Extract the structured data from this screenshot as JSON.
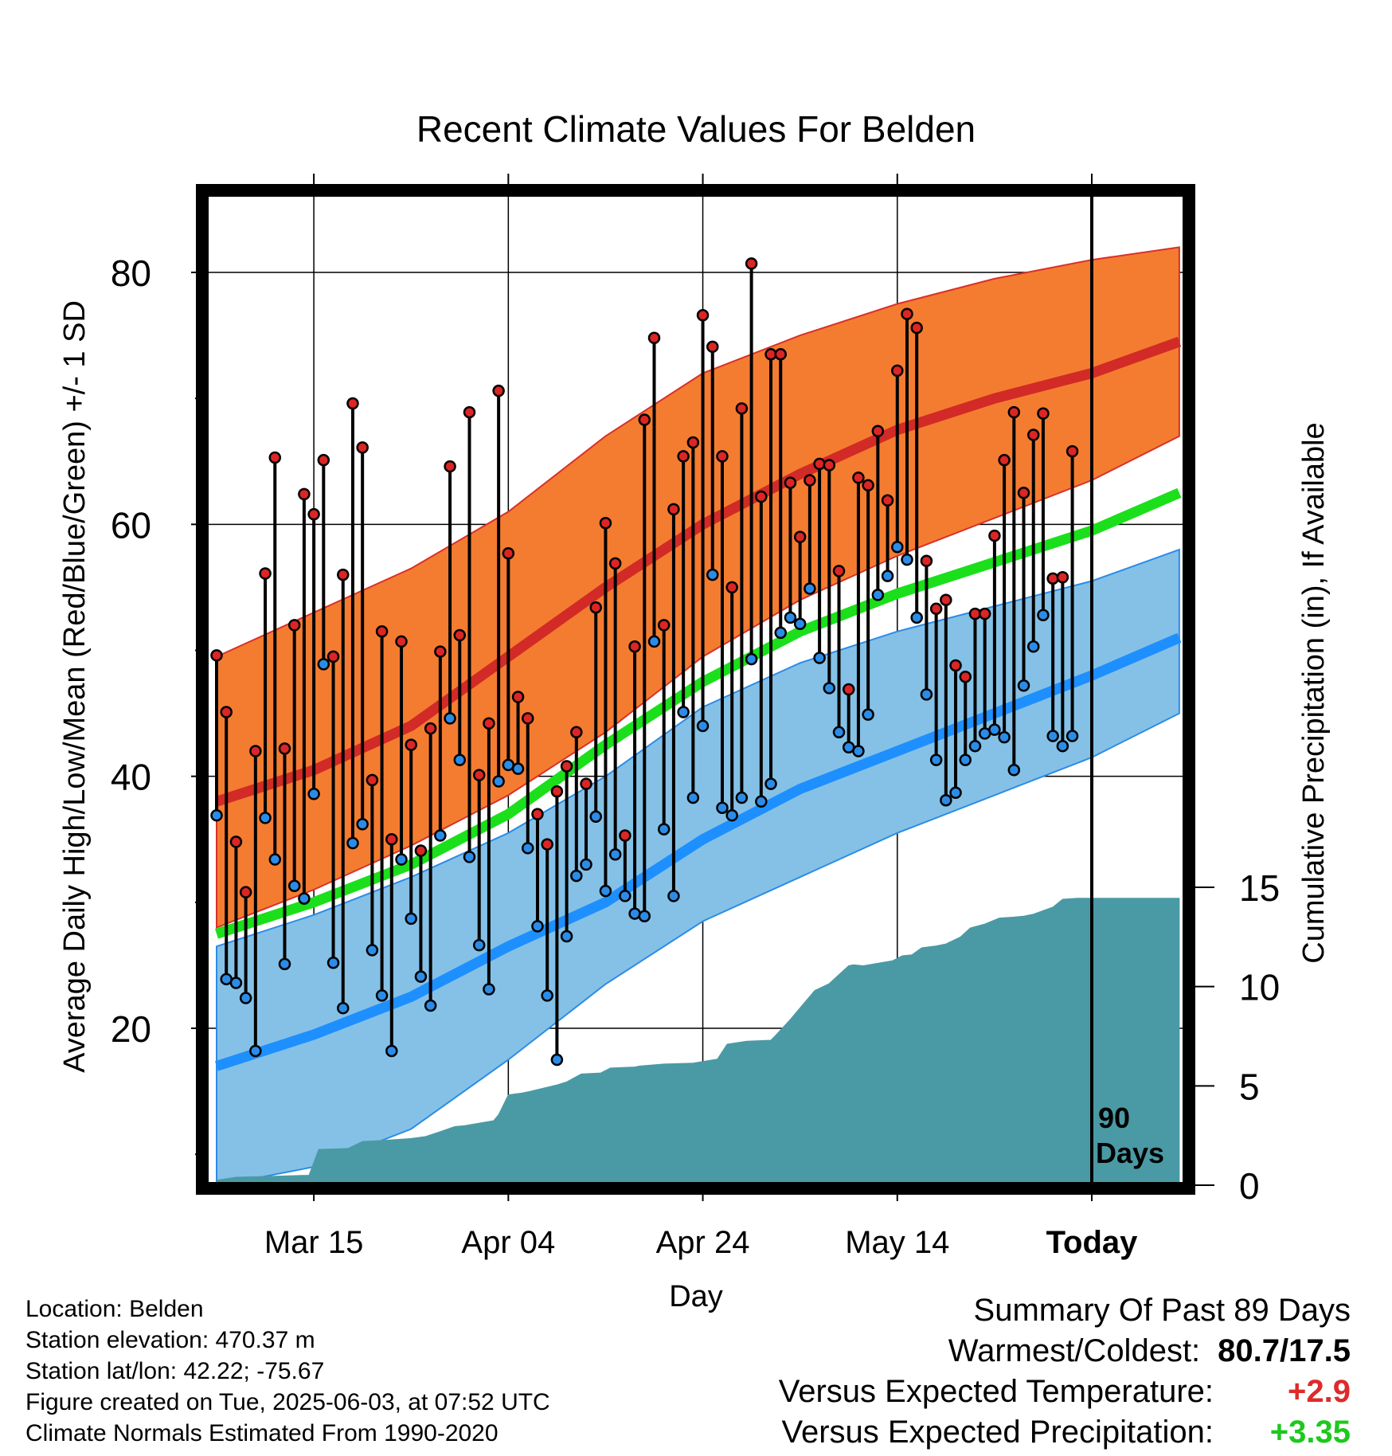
{
  "chart_data": {
    "type": "line",
    "title": "Recent Climate Values For Belden",
    "xlabel": "Day",
    "ylabel": "Average Daily High/Low/Mean (Red/Blue/Green) +/- 1 SD",
    "y2label": "Cumulative Precipitation (in), If Available",
    "ylim": [
      7,
      85
    ],
    "y2lim": [
      0,
      20
    ],
    "yticks": [
      20,
      40,
      60,
      80
    ],
    "y2ticks": [
      0,
      5,
      10,
      15
    ],
    "xlim": [
      0,
      99
    ],
    "xticks": [
      {
        "day": 10,
        "label": "Mar 15"
      },
      {
        "day": 30,
        "label": "Apr 04"
      },
      {
        "day": 50,
        "label": "Apr 24"
      },
      {
        "day": 70,
        "label": "May 14"
      },
      {
        "day": 90,
        "label": "Today"
      }
    ],
    "today_label": [
      "90",
      "Days"
    ],
    "grid": true,
    "colors": {
      "high_band": "#f47c30",
      "high_normal": "#d22a26",
      "low_band": "#85c1e6",
      "low_normal": "#1e8fff",
      "mean_normal": "#1bdf1b",
      "precip": "#4a9aa5",
      "high_marker": "#dc2525",
      "low_marker": "#2b8ce8"
    },
    "normals": {
      "days": [
        0,
        10,
        20,
        30,
        40,
        50,
        60,
        70,
        80,
        90,
        99
      ],
      "high_mean": [
        38.0,
        40.5,
        44.0,
        49.5,
        55.0,
        60.0,
        64.0,
        67.5,
        70.0,
        72.0,
        74.5
      ],
      "high_upper": [
        49.5,
        53.0,
        56.5,
        61.0,
        67.0,
        72.0,
        75.0,
        77.5,
        79.5,
        81.0,
        82.0
      ],
      "high_lower": [
        28.0,
        31.0,
        34.5,
        38.5,
        43.5,
        49.5,
        54.0,
        57.5,
        60.5,
        63.5,
        67.0
      ],
      "mean_normal": [
        27.5,
        30.0,
        33.0,
        37.0,
        42.5,
        47.5,
        51.5,
        54.5,
        57.0,
        59.5,
        62.5
      ],
      "low_mean": [
        17.0,
        19.5,
        22.5,
        26.5,
        30.0,
        35.0,
        39.0,
        42.0,
        45.0,
        48.0,
        51.0
      ],
      "low_upper": [
        26.5,
        29.0,
        32.0,
        35.5,
        40.0,
        45.5,
        49.0,
        51.5,
        53.5,
        55.5,
        58.0
      ],
      "low_lower": [
        7.5,
        9.0,
        12.0,
        17.5,
        23.5,
        28.5,
        32.0,
        35.5,
        38.5,
        41.5,
        45.0
      ]
    },
    "series": [
      {
        "name": "High",
        "values": [
          49.6,
          45.1,
          34.8,
          30.8,
          42.0,
          56.1,
          65.3,
          42.2,
          52.0,
          62.4,
          60.8,
          65.1,
          49.5,
          56.0,
          69.6,
          66.1,
          39.7,
          51.5,
          35.0,
          50.7,
          42.5,
          34.1,
          43.8,
          49.9,
          64.6,
          51.2,
          68.9,
          40.1,
          44.2,
          70.6,
          57.7,
          46.3,
          44.6,
          37.0,
          34.6,
          38.8,
          40.8,
          43.5,
          39.4,
          53.4,
          60.1,
          56.9,
          35.3,
          50.3,
          68.3,
          74.8,
          52.0,
          61.2,
          65.4,
          66.5,
          76.6,
          74.1,
          65.4,
          55.0,
          69.2,
          80.7,
          62.2,
          73.5,
          73.5,
          63.3,
          59.0,
          63.5,
          64.8,
          64.7,
          56.3,
          46.9,
          63.7,
          63.1,
          67.4,
          61.9,
          72.2,
          76.7,
          75.6,
          57.1,
          53.3,
          54.0,
          48.8,
          47.9,
          52.9,
          52.9,
          59.1,
          65.1,
          68.9,
          62.5,
          67.1,
          68.8,
          55.7,
          55.8,
          65.8
        ]
      },
      {
        "name": "Low",
        "values": [
          36.9,
          23.9,
          23.6,
          22.4,
          18.2,
          36.7,
          33.4,
          25.1,
          31.3,
          30.3,
          38.6,
          48.9,
          25.2,
          21.6,
          34.7,
          36.2,
          26.2,
          22.6,
          18.2,
          33.4,
          28.7,
          24.1,
          21.8,
          35.3,
          44.6,
          41.3,
          33.6,
          26.6,
          23.1,
          39.6,
          40.9,
          40.6,
          34.3,
          28.1,
          22.6,
          17.5,
          27.3,
          32.1,
          33.0,
          36.8,
          30.9,
          33.8,
          30.5,
          29.1,
          28.9,
          50.7,
          35.8,
          30.5,
          45.1,
          38.3,
          44.0,
          56.0,
          37.5,
          36.9,
          38.3,
          49.3,
          38.0,
          39.4,
          51.4,
          52.6,
          52.1,
          54.9,
          49.4,
          47.0,
          43.5,
          42.3,
          42.0,
          44.9,
          54.4,
          55.9,
          58.2,
          57.2,
          52.6,
          46.5,
          41.3,
          38.1,
          38.7,
          41.3,
          42.4,
          43.4,
          43.7,
          43.1,
          40.5,
          47.2,
          50.3,
          52.8,
          43.2,
          42.4,
          43.2
        ]
      },
      {
        "name": "Cumulative Precipitation",
        "days": [
          0,
          2,
          6,
          9.5,
          10.5,
          13.5,
          15,
          17,
          20,
          21.5,
          23,
          24.5,
          25.5,
          28.5,
          29,
          30,
          31.5,
          32,
          35,
          36,
          37.5,
          39.5,
          40.5,
          43,
          43.5,
          46,
          49,
          51.5,
          52.5,
          54.5,
          57,
          57.5,
          59,
          61.5,
          63,
          65,
          65.5,
          66.5,
          69.5,
          70.5,
          71.5,
          72.5,
          74,
          75,
          76.5,
          77.5,
          79,
          80.5,
          82,
          83,
          84,
          86,
          87,
          88.5,
          99
        ],
        "values": [
          0.25,
          0.4,
          0.45,
          0.5,
          1.8,
          1.85,
          2.2,
          2.25,
          2.35,
          2.45,
          2.7,
          2.95,
          3.0,
          3.25,
          3.55,
          4.55,
          4.65,
          4.7,
          5.05,
          5.2,
          5.6,
          5.65,
          5.9,
          5.95,
          6.0,
          6.1,
          6.15,
          6.35,
          7.1,
          7.25,
          7.3,
          7.55,
          8.35,
          9.8,
          10.15,
          11.05,
          11.1,
          11.05,
          11.3,
          11.55,
          11.6,
          11.95,
          12.05,
          12.15,
          12.5,
          12.95,
          13.15,
          13.45,
          13.5,
          13.55,
          13.65,
          14.0,
          14.4,
          14.45,
          14.45
        ]
      }
    ]
  },
  "info": {
    "location": "Location: Belden",
    "elevation": "Station elevation: 470.37 m",
    "latlon": "Station lat/lon: 42.22; -75.67",
    "created": "Figure created on Tue, 2025-06-03, at 07:52 UTC",
    "normals_period": "Climate Normals Estimated From 1990-2020"
  },
  "summary": {
    "title": "Summary Of Past 89 Days",
    "warmest_coldest_label": "Warmest/Coldest:",
    "warmest_coldest_value": "80.7/17.5",
    "temp_label": "Versus Expected Temperature:",
    "temp_value": "+2.9",
    "temp_color": "#dd2b2b",
    "precip_label": "Versus Expected Precipitation:",
    "precip_value": "+3.35",
    "precip_color": "#1ec81e"
  }
}
